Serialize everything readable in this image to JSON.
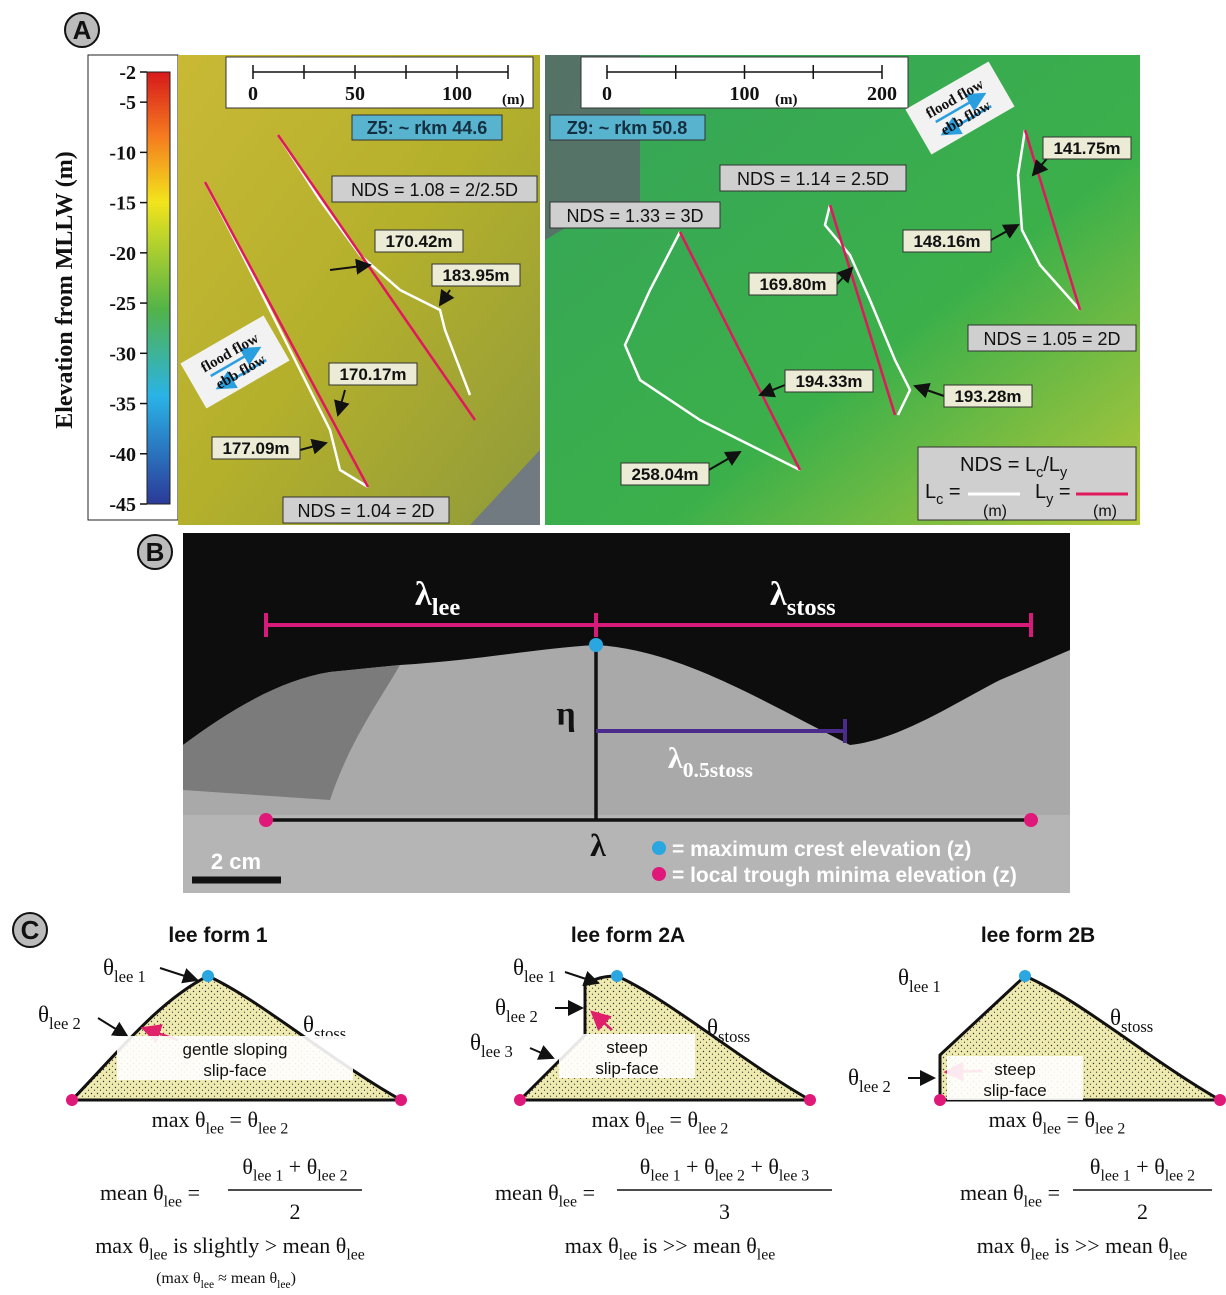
{
  "panel_a": {
    "label": "A",
    "colorbar": {
      "title": "Elevation from MLLW (m)",
      "ticks": [
        -2,
        -5,
        -10,
        -15,
        -20,
        -25,
        -30,
        -35,
        -40,
        -45
      ]
    },
    "scale_z5": {
      "ticks": [
        0,
        50,
        100
      ],
      "unit": "(m)"
    },
    "scale_z9": {
      "ticks": [
        0,
        100,
        200
      ],
      "unit": "(m)"
    },
    "site_z5": "Z5: ~ rkm 44.6",
    "site_z9": "Z9: ~ rkm 50.8",
    "nds": [
      "NDS = 1.08 = 2/2.5D",
      "NDS = 1.04 = 2D",
      "NDS = 1.33 = 3D",
      "NDS = 1.14 = 2.5D",
      "NDS = 1.05 = 2D"
    ],
    "lengths": [
      "170.42m",
      "183.95m",
      "170.17m",
      "177.09m",
      "194.33m",
      "258.04m",
      "169.80m",
      "193.28m",
      "148.16m",
      "141.75m"
    ],
    "flow_z5": [
      "flood flow",
      "ebb flow"
    ],
    "flow_z9": [
      "flood flow",
      "ebb flow"
    ],
    "legend": {
      "formula": [
        "NDS = L",
        "c",
        "/L",
        "y"
      ],
      "lc": [
        "L",
        "c",
        " ="
      ],
      "ly": [
        "L",
        "y",
        " ="
      ],
      "unit_lc": "(m)",
      "unit_ly": "(m)"
    }
  },
  "panel_b": {
    "label": "B",
    "lambda_lee": [
      "λ",
      "lee"
    ],
    "lambda_stoss": [
      "λ",
      "stoss"
    ],
    "eta": "η",
    "lambda_half": [
      "λ",
      "0.5stoss"
    ],
    "lambda": "λ",
    "scale": "2 cm",
    "legend": [
      "= maximum crest elevation (z)",
      "= local trough minima elevation (z)"
    ]
  },
  "panel_c": {
    "label": "C",
    "forms": [
      {
        "title": "lee form 1",
        "theta_labels": [
          [
            "θ",
            "lee 1"
          ],
          [
            "θ",
            "lee 2"
          ],
          [
            "θ",
            "stoss"
          ]
        ],
        "note": [
          "gentle sloping",
          "slip-face"
        ],
        "max": [
          "max θ",
          "lee",
          " = θ",
          "lee 2"
        ],
        "mean": [
          "mean θ",
          "lee",
          " ="
        ],
        "numerator": [
          "θ",
          "lee 1",
          " + θ",
          "lee 2"
        ],
        "denominator": "2",
        "comparison": [
          "max θ",
          "lee",
          " is slightly > mean θ",
          "lee"
        ],
        "aside": [
          "(max θ",
          "lee",
          " ≈ mean θ",
          "lee",
          ")"
        ]
      },
      {
        "title": "lee form 2A",
        "theta_labels": [
          [
            "θ",
            "lee 1"
          ],
          [
            "θ",
            "lee 2"
          ],
          [
            "θ",
            "lee 3"
          ],
          [
            "θ",
            "stoss"
          ]
        ],
        "note": [
          "steep",
          "slip-face"
        ],
        "max": [
          "max θ",
          "lee",
          " = θ",
          "lee 2"
        ],
        "mean": [
          "mean θ",
          "lee",
          " ="
        ],
        "numerator": [
          "θ",
          "lee 1",
          " + θ",
          "lee 2",
          " + θ",
          "lee 3"
        ],
        "denominator": "3",
        "comparison": [
          "max θ",
          "lee",
          " is >> mean θ",
          "lee"
        ]
      },
      {
        "title": "lee form 2B",
        "theta_labels": [
          [
            "θ",
            "lee 1"
          ],
          [
            "θ",
            "stoss"
          ],
          [
            "θ",
            "lee 2"
          ]
        ],
        "note": [
          "steep",
          "slip-face"
        ],
        "max": [
          "max θ",
          "lee",
          " = θ",
          "lee 2"
        ],
        "mean": [
          "mean θ",
          "lee",
          " ="
        ],
        "numerator": [
          "θ",
          "lee 1",
          " + θ",
          "lee 2"
        ],
        "denominator": "2",
        "comparison": [
          "max θ",
          "lee",
          " is >> mean θ",
          "lee"
        ]
      }
    ]
  }
}
